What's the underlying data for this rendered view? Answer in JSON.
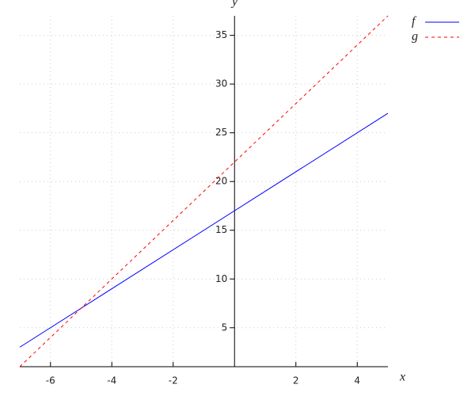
{
  "chart_data": {
    "type": "line",
    "x_label": "x",
    "y_label": "y",
    "x": [
      -7,
      5
    ],
    "series": [
      {
        "name": "f",
        "color": "#0000ff",
        "dash": false,
        "values": [
          3,
          27
        ]
      },
      {
        "name": "g",
        "color": "#ff0000",
        "dash": true,
        "values": [
          1,
          37
        ]
      }
    ],
    "xlim": [
      -7,
      5
    ],
    "ylim": [
      1,
      37
    ],
    "xticks": [
      -6,
      -4,
      -2,
      2,
      4
    ],
    "yticks": [
      5,
      10,
      15,
      20,
      25,
      30,
      35
    ],
    "grid": true,
    "legend": "top-right"
  }
}
